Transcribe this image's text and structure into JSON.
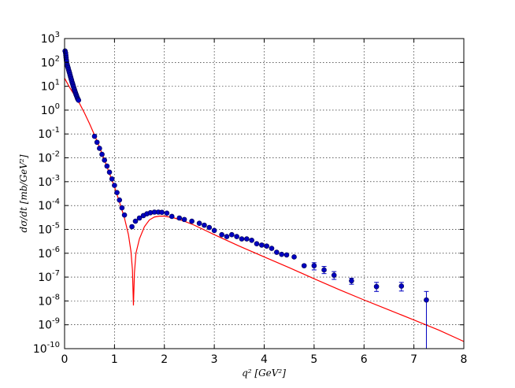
{
  "chart_data": {
    "type": "scatter",
    "xlabel": "q² [GeV²]",
    "ylabel": "dσ/dt [mb/GeV²]",
    "xlim": [
      0,
      8
    ],
    "ylim_exponents": [
      -10,
      3
    ],
    "y_scale": "log",
    "grid": true,
    "x_ticks": [
      "0",
      "1",
      "2",
      "3",
      "4",
      "5",
      "6",
      "7",
      "8"
    ],
    "y_tick_base": "10",
    "y_tick_exponents": [
      "-10",
      "-9",
      "-8",
      "-7",
      "-6",
      "-5",
      "-4",
      "-3",
      "-2",
      "-1",
      "0",
      "1",
      "2",
      "3"
    ],
    "series": [
      {
        "kind": "line",
        "color": "#ff0000",
        "points": [
          [
            0.0,
            22
          ],
          [
            0.05,
            14
          ],
          [
            0.1,
            9
          ],
          [
            0.2,
            4.2
          ],
          [
            0.3,
            1.9
          ],
          [
            0.4,
            0.75
          ],
          [
            0.5,
            0.27
          ],
          [
            0.6,
            0.09
          ],
          [
            0.7,
            0.028
          ],
          [
            0.8,
            0.008
          ],
          [
            0.9,
            0.0022
          ],
          [
            1.0,
            0.0006
          ],
          [
            1.1,
            0.00014
          ],
          [
            1.2,
            3e-05
          ],
          [
            1.28,
            6e-06
          ],
          [
            1.33,
            1.2e-06
          ],
          [
            1.36,
            2e-07
          ],
          [
            1.38,
            6.5e-09
          ],
          [
            1.4,
            1.5e-07
          ],
          [
            1.43,
            1e-06
          ],
          [
            1.5,
            4e-06
          ],
          [
            1.6,
            1.3e-05
          ],
          [
            1.7,
            2.5e-05
          ],
          [
            1.8,
            3.3e-05
          ],
          [
            1.9,
            3.6e-05
          ],
          [
            2.0,
            3.6e-05
          ],
          [
            2.2,
            3e-05
          ],
          [
            2.4,
            2.2e-05
          ],
          [
            2.6,
            1.5e-05
          ],
          [
            2.8,
            9.5e-06
          ],
          [
            3.0,
            6e-06
          ],
          [
            3.5,
            2e-06
          ],
          [
            4.0,
            7e-07
          ],
          [
            4.5,
            2.5e-07
          ],
          [
            5.0,
            8.5e-08
          ],
          [
            5.5,
            3e-08
          ],
          [
            6.0,
            1.1e-08
          ],
          [
            6.5,
            4.2e-09
          ],
          [
            7.0,
            1.6e-09
          ],
          [
            7.5,
            6e-10
          ],
          [
            8.0,
            2e-10
          ]
        ]
      },
      {
        "kind": "points",
        "color": "#0000c0",
        "points": [
          [
            0.01,
            300
          ],
          [
            0.02,
            250
          ],
          [
            0.025,
            200
          ],
          [
            0.03,
            160
          ],
          [
            0.035,
            130
          ],
          [
            0.04,
            110
          ],
          [
            0.05,
            85
          ],
          [
            0.06,
            70
          ],
          [
            0.07,
            60
          ],
          [
            0.08,
            50
          ],
          [
            0.09,
            42
          ],
          [
            0.1,
            36
          ],
          [
            0.11,
            30
          ],
          [
            0.12,
            25
          ],
          [
            0.13,
            21
          ],
          [
            0.14,
            18
          ],
          [
            0.15,
            15
          ],
          [
            0.16,
            13
          ],
          [
            0.17,
            11
          ],
          [
            0.18,
            9.5
          ],
          [
            0.19,
            8
          ],
          [
            0.2,
            7
          ],
          [
            0.21,
            6
          ],
          [
            0.22,
            5.2
          ],
          [
            0.23,
            4.5
          ],
          [
            0.24,
            4
          ],
          [
            0.25,
            3.5
          ],
          [
            0.26,
            3.1
          ],
          [
            0.27,
            2.8
          ],
          [
            0.28,
            2.6
          ],
          [
            0.6,
            0.08
          ],
          [
            0.65,
            0.045
          ],
          [
            0.7,
            0.025
          ],
          [
            0.75,
            0.014
          ],
          [
            0.8,
            0.008
          ],
          [
            0.85,
            0.0045
          ],
          [
            0.9,
            0.0025
          ],
          [
            0.95,
            0.0013
          ],
          [
            1.0,
            0.0007
          ],
          [
            1.05,
            0.00035
          ],
          [
            1.1,
            0.00017
          ],
          [
            1.15,
            8e-05
          ],
          [
            1.2,
            4e-05
          ],
          [
            1.35,
            1.3e-05
          ],
          [
            1.42,
            2.2e-05
          ],
          [
            1.5,
            3e-05
          ],
          [
            1.58,
            3.8e-05
          ],
          [
            1.65,
            4.5e-05
          ],
          [
            1.72,
            5e-05
          ],
          [
            1.8,
            5.3e-05
          ],
          [
            1.88,
            5.3e-05
          ],
          [
            1.95,
            5.2e-05
          ],
          [
            2.05,
            4.8e-05
          ],
          [
            2.15,
            3.5e-05
          ],
          [
            2.3,
            3e-05
          ],
          [
            2.4,
            2.6e-05
          ],
          [
            2.55,
            2.2e-05
          ],
          [
            2.7,
            1.8e-05
          ],
          [
            2.8,
            1.5e-05
          ],
          [
            2.9,
            1.2e-05
          ],
          [
            3.0,
            9e-06
          ],
          [
            3.15,
            6e-06
          ],
          [
            3.25,
            5e-06
          ],
          [
            3.35,
            6e-06
          ],
          [
            3.45,
            5e-06
          ],
          [
            3.55,
            4e-06
          ],
          [
            3.65,
            4e-06
          ],
          [
            3.75,
            3.5e-06
          ],
          [
            3.85,
            2.5e-06
          ],
          [
            3.95,
            2.2e-06
          ],
          [
            4.05,
            2e-06
          ],
          [
            4.15,
            1.6e-06
          ],
          [
            4.25,
            1.1e-06
          ],
          [
            4.35,
            9e-07
          ],
          [
            4.45,
            8.5e-07
          ],
          [
            4.6,
            7e-07
          ],
          [
            4.8,
            3e-07
          ],
          [
            5.0,
            3e-07
          ],
          [
            5.2,
            2e-07
          ],
          [
            5.4,
            1.2e-07
          ],
          [
            5.75,
            7e-08
          ],
          [
            6.25,
            4e-08
          ],
          [
            6.75,
            4.2e-08
          ],
          [
            7.25,
            1.1e-08
          ]
        ],
        "error_bars": [
          [
            5.0,
            2e-07,
            4e-07
          ],
          [
            5.2,
            1.4e-07,
            2.8e-07
          ],
          [
            5.4,
            8e-08,
            1.7e-07
          ],
          [
            5.75,
            5e-08,
            9e-08
          ],
          [
            6.25,
            2.5e-08,
            6e-08
          ],
          [
            6.75,
            2.6e-08,
            6e-08
          ],
          [
            7.25,
            1e-10,
            2.5e-08
          ]
        ]
      }
    ]
  }
}
